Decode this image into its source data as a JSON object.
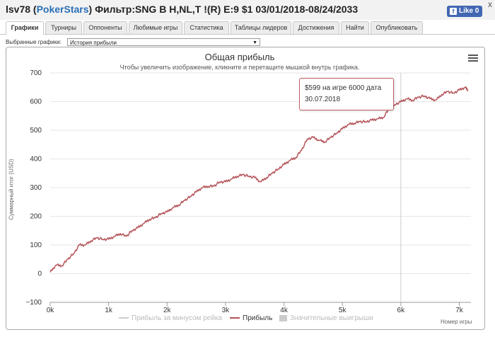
{
  "window": {
    "title_prefix": "lsv78 (",
    "title_site": "PokerStars",
    "title_suffix": ") Фильтр:SNG B H,NL,T !(R) E:9 $1 03/01/2018-08/24/2033",
    "close_label": "x",
    "fb_icon": "f",
    "fb_label": "Like 0"
  },
  "tabs": [
    {
      "label": "Графики"
    },
    {
      "label": "Турниры"
    },
    {
      "label": "Оппоненты"
    },
    {
      "label": "Любимые игры"
    },
    {
      "label": "Статистика"
    },
    {
      "label": "Таблицы лидеров"
    },
    {
      "label": "Достижения"
    },
    {
      "label": "Найти"
    },
    {
      "label": "Опубликовать"
    }
  ],
  "selector": {
    "label": "Выбранные графики:",
    "value": "История прибыли",
    "arrow": "▼"
  },
  "colors": {
    "line": "#b5555a",
    "grid": "#e6e6e6",
    "axis": "#333333",
    "crosshair": "#cccccc"
  },
  "chart_data": {
    "type": "line",
    "title": "Общая прибыль",
    "subtitle": "Чтобы увеличить изображение, кликните и перетащите мышкой внутрь графика.",
    "xlabel": "Номер игры",
    "ylabel": "Суммарный итог (USD)",
    "xlim": [
      0,
      7200
    ],
    "ylim": [
      -100,
      700
    ],
    "x_ticks": [
      0,
      1000,
      2000,
      3000,
      4000,
      5000,
      6000,
      7000
    ],
    "x_tick_labels": [
      "0k",
      "1k",
      "2k",
      "3k",
      "4k",
      "5k",
      "6k",
      "7k"
    ],
    "y_ticks": [
      -100,
      0,
      100,
      200,
      300,
      400,
      500,
      600,
      700
    ],
    "y_tick_labels": [
      "−100",
      "0",
      "100",
      "200",
      "300",
      "400",
      "500",
      "600",
      "700"
    ],
    "series": [
      {
        "name": "Прибыль",
        "x": [
          0,
          100,
          200,
          300,
          400,
          500,
          600,
          700,
          800,
          900,
          1000,
          1100,
          1200,
          1300,
          1400,
          1500,
          1600,
          1700,
          1800,
          1900,
          2000,
          2100,
          2200,
          2300,
          2400,
          2500,
          2600,
          2700,
          2800,
          2900,
          3000,
          3100,
          3200,
          3300,
          3400,
          3500,
          3600,
          3700,
          3800,
          3900,
          4000,
          4100,
          4200,
          4300,
          4400,
          4500,
          4600,
          4700,
          4800,
          4900,
          5000,
          5100,
          5200,
          5300,
          5400,
          5500,
          5600,
          5700,
          5800,
          5900,
          6000,
          6100,
          6200,
          6300,
          6400,
          6500,
          6600,
          6700,
          6800,
          6900,
          7000,
          7100,
          7150
        ],
        "y": [
          5,
          30,
          28,
          50,
          70,
          100,
          100,
          115,
          125,
          120,
          120,
          130,
          140,
          130,
          150,
          160,
          175,
          190,
          195,
          210,
          215,
          230,
          240,
          255,
          270,
          285,
          300,
          305,
          305,
          320,
          320,
          330,
          340,
          345,
          340,
          335,
          320,
          335,
          350,
          365,
          380,
          395,
          405,
          430,
          470,
          475,
          465,
          460,
          475,
          490,
          505,
          520,
          525,
          530,
          530,
          535,
          540,
          545,
          575,
          590,
          599,
          610,
          605,
          615,
          620,
          610,
          605,
          625,
          635,
          630,
          640,
          650,
          640
        ]
      }
    ],
    "legend": [
      {
        "label": "Прибыль за минусом рейка",
        "enabled": false
      },
      {
        "label": "Прибыль",
        "enabled": true
      },
      {
        "label": "Значительные выигрыши",
        "enabled": false
      }
    ],
    "legend_position": "bottom",
    "grid": true,
    "crosshair_x": 6000,
    "tooltip": {
      "line1": "$599 на игре 6000 дата",
      "line2": "30.07.2018"
    }
  }
}
